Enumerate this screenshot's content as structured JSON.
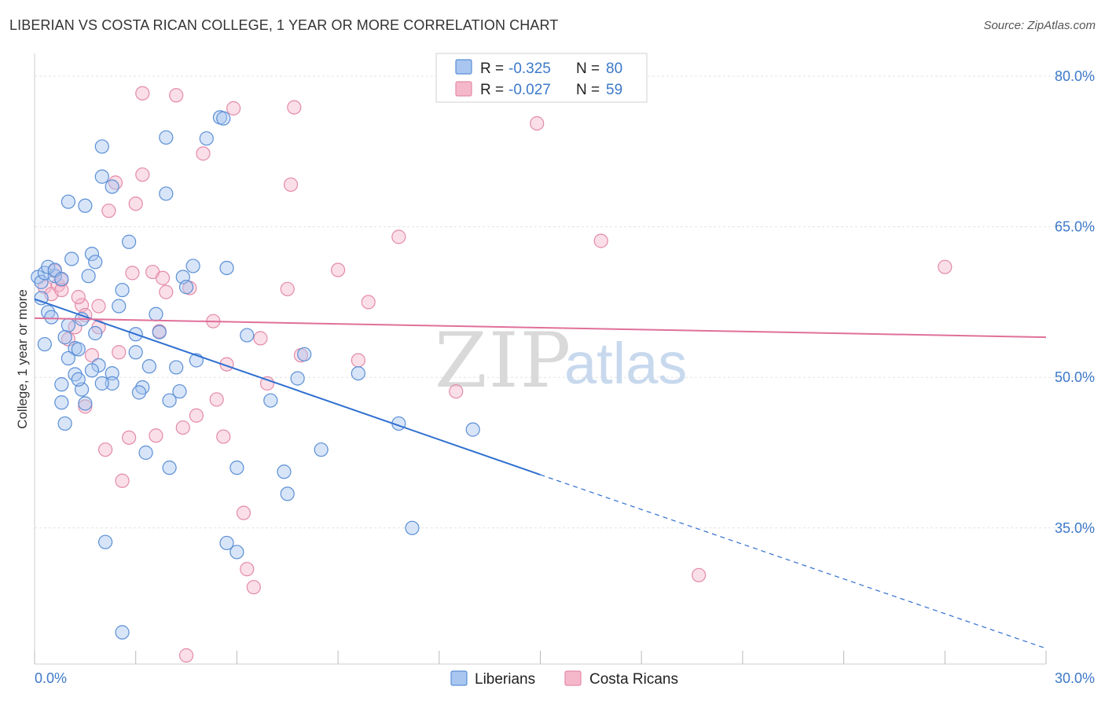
{
  "title": "LIBERIAN VS COSTA RICAN COLLEGE, 1 YEAR OR MORE CORRELATION CHART",
  "source": "Source: ZipAtlas.com",
  "watermark": {
    "zip": "ZIP",
    "atlas": "atlas"
  },
  "colors": {
    "blue_fill": "#a8c6ef",
    "blue_stroke": "#5b8fd6",
    "blue_line": "#2f6fd0",
    "pink_fill": "#f5b8cb",
    "pink_stroke": "#e48aa8",
    "pink_line": "#e0709a",
    "axis_text": "#3d79c9"
  },
  "legend": {
    "rows": [
      {
        "r_label": "R =",
        "r_value": "-0.325",
        "n_label": "N =",
        "n_value": "80"
      },
      {
        "r_label": "R =",
        "r_value": "-0.027",
        "n_label": "N =",
        "n_value": "59"
      }
    ]
  },
  "bottom_legend": [
    "Liberians",
    "Costa Ricans"
  ],
  "chart_data": {
    "type": "scatter",
    "title": "LIBERIAN VS COSTA RICAN COLLEGE, 1 YEAR OR MORE CORRELATION CHART",
    "xlabel": "",
    "ylabel": "College, 1 year or more",
    "xlim": [
      0,
      30
    ],
    "ylim": [
      22,
      82
    ],
    "x_ticks": [
      "0.0%",
      "30.0%"
    ],
    "y_ticks": [
      {
        "value": 80,
        "label": "80.0%"
      },
      {
        "value": 65,
        "label": "65.0%"
      },
      {
        "value": 50,
        "label": "50.0%"
      },
      {
        "value": 35,
        "label": "35.0%"
      }
    ],
    "grid": true,
    "legend_position": "top-center",
    "series": [
      {
        "name": "Liberians",
        "r": -0.325,
        "n": 80,
        "trend": {
          "x0": 0.0,
          "y0": 57.8,
          "x1": 15.0,
          "y1": 40.3,
          "dashed_to_x": 30.0,
          "dashed_to_y": 23.0
        },
        "points": [
          [
            0.1,
            60.0
          ],
          [
            0.2,
            59.5
          ],
          [
            0.3,
            60.4
          ],
          [
            0.6,
            60.1
          ],
          [
            0.4,
            61.0
          ],
          [
            0.6,
            60.7
          ],
          [
            0.8,
            59.8
          ],
          [
            0.2,
            57.9
          ],
          [
            0.4,
            56.5
          ],
          [
            0.5,
            56.0
          ],
          [
            0.3,
            53.3
          ],
          [
            1.1,
            61.8
          ],
          [
            1.6,
            60.1
          ],
          [
            1.7,
            62.3
          ],
          [
            1.8,
            61.5
          ],
          [
            1.4,
            55.8
          ],
          [
            1.0,
            55.2
          ],
          [
            0.9,
            54.0
          ],
          [
            1.2,
            52.9
          ],
          [
            1.3,
            52.8
          ],
          [
            1.0,
            51.9
          ],
          [
            1.2,
            50.3
          ],
          [
            0.8,
            49.3
          ],
          [
            1.4,
            48.8
          ],
          [
            1.5,
            47.4
          ],
          [
            0.9,
            45.4
          ],
          [
            1.8,
            54.4
          ],
          [
            1.9,
            51.2
          ],
          [
            2.3,
            50.4
          ],
          [
            2.5,
            57.1
          ],
          [
            2.6,
            58.7
          ],
          [
            2.8,
            63.5
          ],
          [
            2.3,
            49.4
          ],
          [
            2.0,
            49.4
          ],
          [
            1.7,
            50.7
          ],
          [
            2.3,
            69.0
          ],
          [
            2.0,
            73.0
          ],
          [
            2.0,
            70.0
          ],
          [
            1.0,
            67.5
          ],
          [
            1.5,
            67.1
          ],
          [
            3.0,
            54.3
          ],
          [
            3.0,
            52.5
          ],
          [
            3.2,
            49.0
          ],
          [
            3.1,
            48.5
          ],
          [
            3.4,
            51.1
          ],
          [
            3.6,
            56.3
          ],
          [
            3.7,
            54.5
          ],
          [
            3.9,
            73.9
          ],
          [
            3.9,
            68.3
          ],
          [
            4.4,
            60.0
          ],
          [
            4.7,
            61.1
          ],
          [
            4.5,
            59.0
          ],
          [
            4.2,
            51.0
          ],
          [
            4.3,
            48.6
          ],
          [
            4.0,
            47.7
          ],
          [
            4.0,
            41.0
          ],
          [
            4.8,
            51.7
          ],
          [
            5.1,
            73.8
          ],
          [
            5.5,
            75.9
          ],
          [
            5.6,
            75.8
          ],
          [
            5.7,
            33.5
          ],
          [
            6.0,
            32.6
          ],
          [
            6.0,
            41.0
          ],
          [
            5.7,
            60.9
          ],
          [
            6.3,
            54.2
          ],
          [
            7.0,
            47.7
          ],
          [
            7.4,
            40.6
          ],
          [
            7.5,
            38.4
          ],
          [
            7.8,
            49.9
          ],
          [
            8.0,
            52.3
          ],
          [
            8.5,
            42.8
          ],
          [
            9.6,
            50.4
          ],
          [
            10.8,
            45.4
          ],
          [
            11.2,
            35.0
          ],
          [
            13.0,
            44.8
          ],
          [
            2.1,
            33.6
          ],
          [
            2.6,
            24.6
          ],
          [
            0.8,
            47.5
          ],
          [
            1.3,
            49.8
          ],
          [
            3.3,
            42.5
          ]
        ]
      },
      {
        "name": "Costa Ricans",
        "r": -0.027,
        "n": 59,
        "trend": {
          "x0": 0.0,
          "y0": 55.9,
          "x1": 30.0,
          "y1": 54.0
        },
        "points": [
          [
            0.3,
            59.0
          ],
          [
            0.5,
            58.3
          ],
          [
            0.6,
            60.6
          ],
          [
            0.7,
            59.2
          ],
          [
            0.8,
            59.7
          ],
          [
            0.8,
            58.7
          ],
          [
            1.2,
            55.0
          ],
          [
            1.0,
            53.8
          ],
          [
            1.4,
            57.2
          ],
          [
            1.5,
            56.2
          ],
          [
            1.5,
            47.1
          ],
          [
            1.7,
            52.2
          ],
          [
            1.9,
            57.1
          ],
          [
            1.9,
            55.0
          ],
          [
            2.1,
            42.8
          ],
          [
            2.2,
            66.6
          ],
          [
            2.4,
            69.4
          ],
          [
            2.5,
            52.5
          ],
          [
            2.6,
            39.7
          ],
          [
            2.8,
            44.0
          ],
          [
            2.9,
            60.4
          ],
          [
            3.0,
            67.3
          ],
          [
            3.2,
            70.2
          ],
          [
            3.5,
            60.5
          ],
          [
            3.6,
            44.2
          ],
          [
            3.7,
            54.6
          ],
          [
            3.8,
            59.9
          ],
          [
            3.9,
            58.5
          ],
          [
            4.4,
            45.0
          ],
          [
            4.6,
            58.9
          ],
          [
            4.8,
            46.2
          ],
          [
            5.0,
            72.3
          ],
          [
            5.3,
            55.6
          ],
          [
            5.4,
            47.8
          ],
          [
            5.6,
            44.1
          ],
          [
            5.7,
            51.3
          ],
          [
            3.2,
            78.3
          ],
          [
            4.2,
            78.1
          ],
          [
            5.9,
            76.8
          ],
          [
            6.2,
            36.5
          ],
          [
            6.3,
            30.9
          ],
          [
            6.5,
            29.1
          ],
          [
            6.7,
            53.9
          ],
          [
            6.9,
            49.4
          ],
          [
            7.5,
            58.8
          ],
          [
            7.6,
            69.2
          ],
          [
            7.7,
            76.9
          ],
          [
            7.9,
            52.2
          ],
          [
            9.0,
            60.7
          ],
          [
            9.6,
            51.7
          ],
          [
            9.9,
            57.5
          ],
          [
            10.8,
            64.0
          ],
          [
            12.5,
            48.6
          ],
          [
            14.9,
            75.3
          ],
          [
            16.8,
            63.6
          ],
          [
            19.7,
            30.3
          ],
          [
            27.0,
            61.0
          ],
          [
            4.5,
            22.3
          ],
          [
            1.3,
            58.0
          ]
        ]
      }
    ]
  }
}
